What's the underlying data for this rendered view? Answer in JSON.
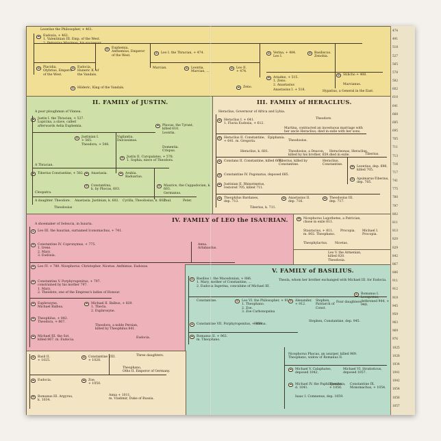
{
  "sections": {
    "top": {
      "entries": [
        "Leontius the Philosopher, + 461.",
        "Eudoxia, + 462.\n1. Valentinian III. Emp. of the West.\n2. Petronius Maximus, his successor.",
        "Placidia,\nOlybrius, Emperor\nof the West.",
        "Eudocia,\nHuneric K. of\nthe Vandals.",
        "Hilderic, King of the Vandals.",
        "Euphemia,\nAnthemius, Emperor\nof the West.",
        "Leo I. the Thracian, + 474.",
        "Marcian.",
        "Leontia,\nMarcian, ...",
        "Leo II.\n+ 474.",
        "Zeno.",
        "Verina, + 484.\nLeo I.",
        "Basiliscus.\nZenobia.",
        "Ariadne, + 515.\n1. Zeno.\n2. Anastasius",
        "Anastasius I. + 518.",
        "Stilicho + 408.",
        "Marcianus.",
        "Hypatius, a General in the East."
      ]
    },
    "justin": {
      "title": "II. FAMILY of JUSTIN.",
      "entries": [
        "A poor ploughman of Vinnea.",
        "Justin I. the Thracian, + 527.\nLupicina, a slave, called\nafterwards Aelia Euphemia.",
        "Justinian I.\n+ 565.\nTheodora, + 548.",
        "Vigilantia.\nDulcissimus.",
        "Phocas, the Tyrant,\nkilled 610.\nLeontia.",
        "Domentia.\nCrispus.",
        "Justin II. Curopalates, + 578.\n1. Sophia, niece of Theodora.",
        "A Thracian.",
        "Tiberius Constantine, + 582.",
        "Anastasia.",
        "Arabia.\nBaduarius.",
        "Constantina,\nk. by Phocas, 603.",
        "Maurice, the Cappadocian, k. 603.\nGermanus.",
        "Cyrilla, Theodosius, k. 602.",
        "A daughter. Theodore.",
        "Anastasia. Justinian, k. 602.",
        "Cleopatra.",
        "Paul.",
        "Peter.",
        "Theodosius"
      ]
    },
    "heraclius": {
      "title": "III. FAMILY of HERACLIUS.",
      "entries": [
        "Heraclius, Governour of Africa and Lybia.",
        "Theodore.",
        "Heraclius I. + 641.\n1. Flavia Eudoxia, + 612.",
        "Martina, contracted an incestuous marriage with\nher uncle Heraclius; died in exile with her sons.",
        "Heraclius II. Constantine,\n+ 641. m. Gregoria.",
        "Epiphania.",
        "Theodosius, a Deacon,\nkilled by his brother, 659.",
        "Heracleonas, Heraclius,\ndied in exile.",
        "Theodosius.",
        "Heraclius, k. 681.",
        "Constans II. Constantine, killed 668.",
        "Tiberius, killed by\nConstantine.",
        "Heraclius.\nConstantine.",
        "Tiberius.",
        "Leontius, dep. 698,\nkilled 705.",
        "Constantine IV. Pogonatus, deposed 685.",
        "Justinian II. Rhinotmetus,\nrestored 705, killed 711.",
        "Apsimarus-Tiberius,\ndep. 705.",
        "Theophilus Bardanes,\ndep. 713.",
        "Anastasius II.\ndep. 716.",
        "Theodosius III.\ndep. 717.",
        "Tiberius, k. 711."
      ]
    },
    "isaurian": {
      "title": "IV. FAMILY of LEO the ISAURIAN.",
      "entries": [
        "A shoemaker of Seleucia, in Isauria.",
        "Leo III. the Isaurian, surnamed Iconomachus, + 741.",
        "Constantine IV. Copronymus, + 775.\n1. Irene.\n2. Mary.\n3. Eudoxia.",
        "Leo IV. + 780. Nicephorus. Christopher. Nicetas. Anthimus. Eudoxus.",
        "Constantine V. Porphyrogenitus, + 797.\nconstrained by his mother 797.\n1. Mary.\n2. Theodote, one of the Empress's ladies of Honour.",
        "Euphrosyne.\nMichael Balbus.",
        "Michael II. Balbus, + 829.\n1. Thecla.\n2. Euphrosyne.",
        "Theophilus, + 842.\nTheodora, + 867.",
        "Michael III. the Sot,\nkilled 867. m. Eudocia.",
        "Theodora, a noble Persian,\nkilled by Theophilus 841.",
        "Irene, wife of the Emperor.",
        "Anna.\nArtabasdus.",
        "Nicephorus.",
        "Eudocia."
      ]
    },
    "basilius": {
      "title": "V. FAMILY of BASILIUS.",
      "entries": [
        "Nicephorus Logothetes, a Patrician,\nchose in exile 811.",
        "Stauracius, + 811.\nm. 802. Theophano.",
        "Procopia.",
        "Michael I.\nProcopia.",
        "Leo V. the Armenian,\nkilled 820.\nTheodosia.",
        "Theophylactus.",
        "Nicetas.",
        "Ignatius, Patriarch of Constantinople.",
        "Basilius I. the Macedonian, + 886.\n1. Mary, mother of Constantine, ...\n2. Eudocia Ingerina, concubine of Michael III.",
        "Theola, whom her brother exchanged with Michael III. for Eudocia.",
        "Constantine.",
        "Leo VI. the Philosopher, + 911.\n1. Theophano.\n2. Zoe.\n3. Zoe Carbonopsina",
        "Alexander,\n+ 912.",
        "Stephen,\nPatriarch of\nConst.",
        "Four daughters.",
        "Romanus I. Lecapenus,\ndethroned 944, + 948.",
        "Constantine VII. Porphyrogenitus, + 959.",
        "Helena.",
        "Stephen, Constantine, dep. 945.",
        "Romanus II. + 963.\nm. Theophano.",
        "Basil II.\n+ 1025.",
        "Constantine VIII.\n+ 1028.",
        "Theophano,\nOtho II. Emperor of Germany.",
        "Three daughters.",
        "Anna + 1011,\nm. Vladimir, Duke of Russia.",
        "Nicephorus Phocas, an usurper, killed 969.\nTheophano, widow of Romanus II.",
        "Michael V. Calaphates,\ndeposed 1042.",
        "Michael VI. Stratioticus,\ndeposed 1057.",
        "Romanus III. Argyrus,\nk. 1034.",
        "Zoe,\n+ 1050.",
        "Michael IV. the Paphlagonian,\nd. 1041.",
        "Theodora,\n+ 1056.",
        "Isaac I. Comnenus, dep. 1059.",
        "Constantine IX. Monomachus, + 1054.",
        "Eudocia."
      ]
    }
  },
  "timeline": {
    "years": [
      "474",
      "491",
      "518",
      "527",
      "565",
      "578",
      "582",
      "602",
      "610",
      "641",
      "668",
      "685",
      "695",
      "705",
      "711",
      "713",
      "716",
      "717",
      "741",
      "775",
      "780",
      "797",
      "802",
      "811",
      "813",
      "820",
      "829",
      "842",
      "867",
      "886",
      "911",
      "912",
      "919",
      "945",
      "959",
      "963",
      "969",
      "976",
      "1025",
      "1028",
      "1034",
      "1041",
      "1042",
      "1054",
      "1056",
      "1057"
    ]
  }
}
